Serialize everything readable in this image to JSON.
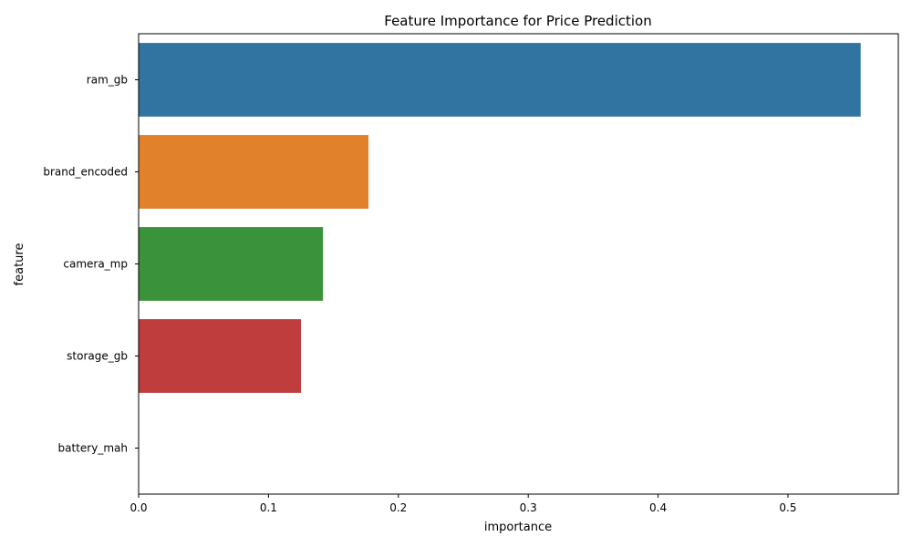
{
  "chart_data": {
    "type": "bar",
    "orientation": "horizontal",
    "title": "Feature Importance for Price Prediction",
    "xlabel": "importance",
    "ylabel": "feature",
    "categories": [
      "ram_gb",
      "brand_encoded",
      "camera_mp",
      "storage_gb",
      "battery_mah"
    ],
    "values": [
      0.556,
      0.177,
      0.142,
      0.125,
      0.0
    ],
    "colors": [
      "#3274a1",
      "#e1812c",
      "#3a923a",
      "#c03d3e",
      "#9372b2"
    ],
    "xlim": [
      0,
      0.585
    ],
    "xticks": [
      0.0,
      0.1,
      0.2,
      0.3,
      0.4,
      0.5
    ],
    "xtick_labels": [
      "0.0",
      "0.1",
      "0.2",
      "0.3",
      "0.4",
      "0.5"
    ],
    "grid": false,
    "legend": false
  }
}
